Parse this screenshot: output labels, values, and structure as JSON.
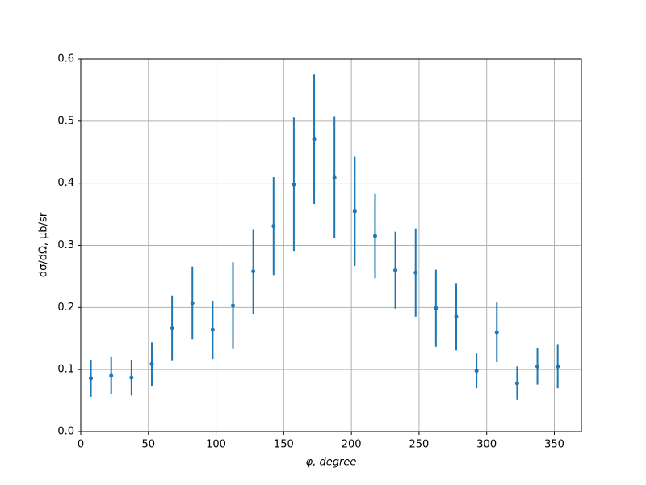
{
  "chart_data": {
    "type": "errorbar",
    "xlabel": "φ, degree",
    "ylabel": "dσ/dΩ, μb/sr",
    "x": [
      7.5,
      22.5,
      37.5,
      52.5,
      67.5,
      82.5,
      97.5,
      112.5,
      127.5,
      142.5,
      157.5,
      172.5,
      187.5,
      202.5,
      217.5,
      232.5,
      247.5,
      262.5,
      277.5,
      292.5,
      307.5,
      322.5,
      337.5,
      352.5
    ],
    "values": [
      0.086,
      0.09,
      0.087,
      0.109,
      0.167,
      0.207,
      0.164,
      0.203,
      0.258,
      0.331,
      0.398,
      0.471,
      0.409,
      0.355,
      0.315,
      0.26,
      0.256,
      0.199,
      0.185,
      0.098,
      0.16,
      0.078,
      0.105,
      0.105
    ],
    "errors": [
      0.03,
      0.03,
      0.029,
      0.035,
      0.052,
      0.059,
      0.047,
      0.07,
      0.068,
      0.079,
      0.108,
      0.104,
      0.098,
      0.088,
      0.068,
      0.062,
      0.071,
      0.062,
      0.054,
      0.028,
      0.048,
      0.027,
      0.029,
      0.035
    ],
    "color": "#1f77b4",
    "xlim": [
      0,
      370
    ],
    "ylim": [
      0,
      0.6
    ],
    "xticks": [
      0,
      50,
      100,
      150,
      200,
      250,
      300,
      350
    ],
    "yticks": [
      {
        "value": 0,
        "label": "0.0"
      },
      0.1,
      0.2,
      0.3,
      0.4,
      0.5,
      0.6
    ],
    "grid": true
  }
}
